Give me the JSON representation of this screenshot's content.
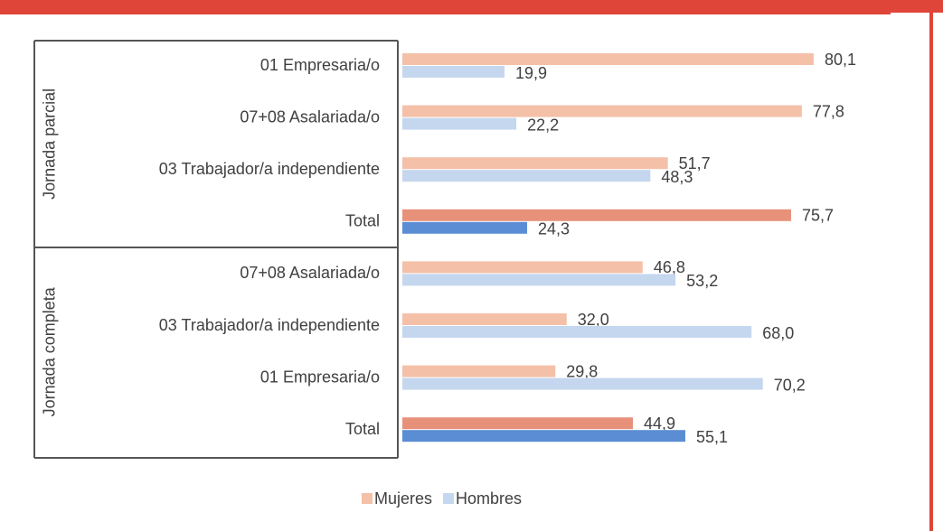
{
  "chart_data": {
    "type": "grouped-hbar",
    "groups": [
      {
        "name": "Jornada parcial",
        "categories": [
          "01 Empresaria/o",
          "07+08 Asalariada/o",
          "03 Trabajador/a independiente",
          "Total"
        ]
      },
      {
        "name": "Jornada completa",
        "categories": [
          "07+08 Asalariada/o",
          "03 Trabajador/a independiente",
          "01 Empresaria/o",
          "Total"
        ]
      }
    ],
    "series": [
      {
        "name": "Mujeres",
        "color": "#f4c0a8",
        "colors": [
          "#f4c0a8",
          "#f4c0a8",
          "#f4c0a8",
          "#e8917a",
          "#f4c0a8",
          "#f4c0a8",
          "#f4c0a8",
          "#e8917a"
        ],
        "values": [
          80.1,
          77.8,
          51.7,
          75.7,
          46.8,
          32.0,
          29.8,
          44.9
        ],
        "value_labels": [
          "80,1",
          "77,8",
          "51,7",
          "75,7",
          "46,8",
          "32,0",
          "29,8",
          "44,9"
        ]
      },
      {
        "name": "Hombres",
        "color": "#c5d7ef",
        "colors": [
          "#c5d7ef",
          "#c5d7ef",
          "#c5d7ef",
          "#5b8dd4",
          "#c5d7ef",
          "#c5d7ef",
          "#c5d7ef",
          "#5b8dd4"
        ],
        "values": [
          19.9,
          22.2,
          48.3,
          24.3,
          53.2,
          68.0,
          70.2,
          55.1
        ],
        "value_labels": [
          "19,9",
          "22,2",
          "48,3",
          "24,3",
          "53,2",
          "68,0",
          "70,2",
          "55,1"
        ]
      }
    ],
    "xlim": [
      0,
      100
    ],
    "legend": "bottom"
  }
}
